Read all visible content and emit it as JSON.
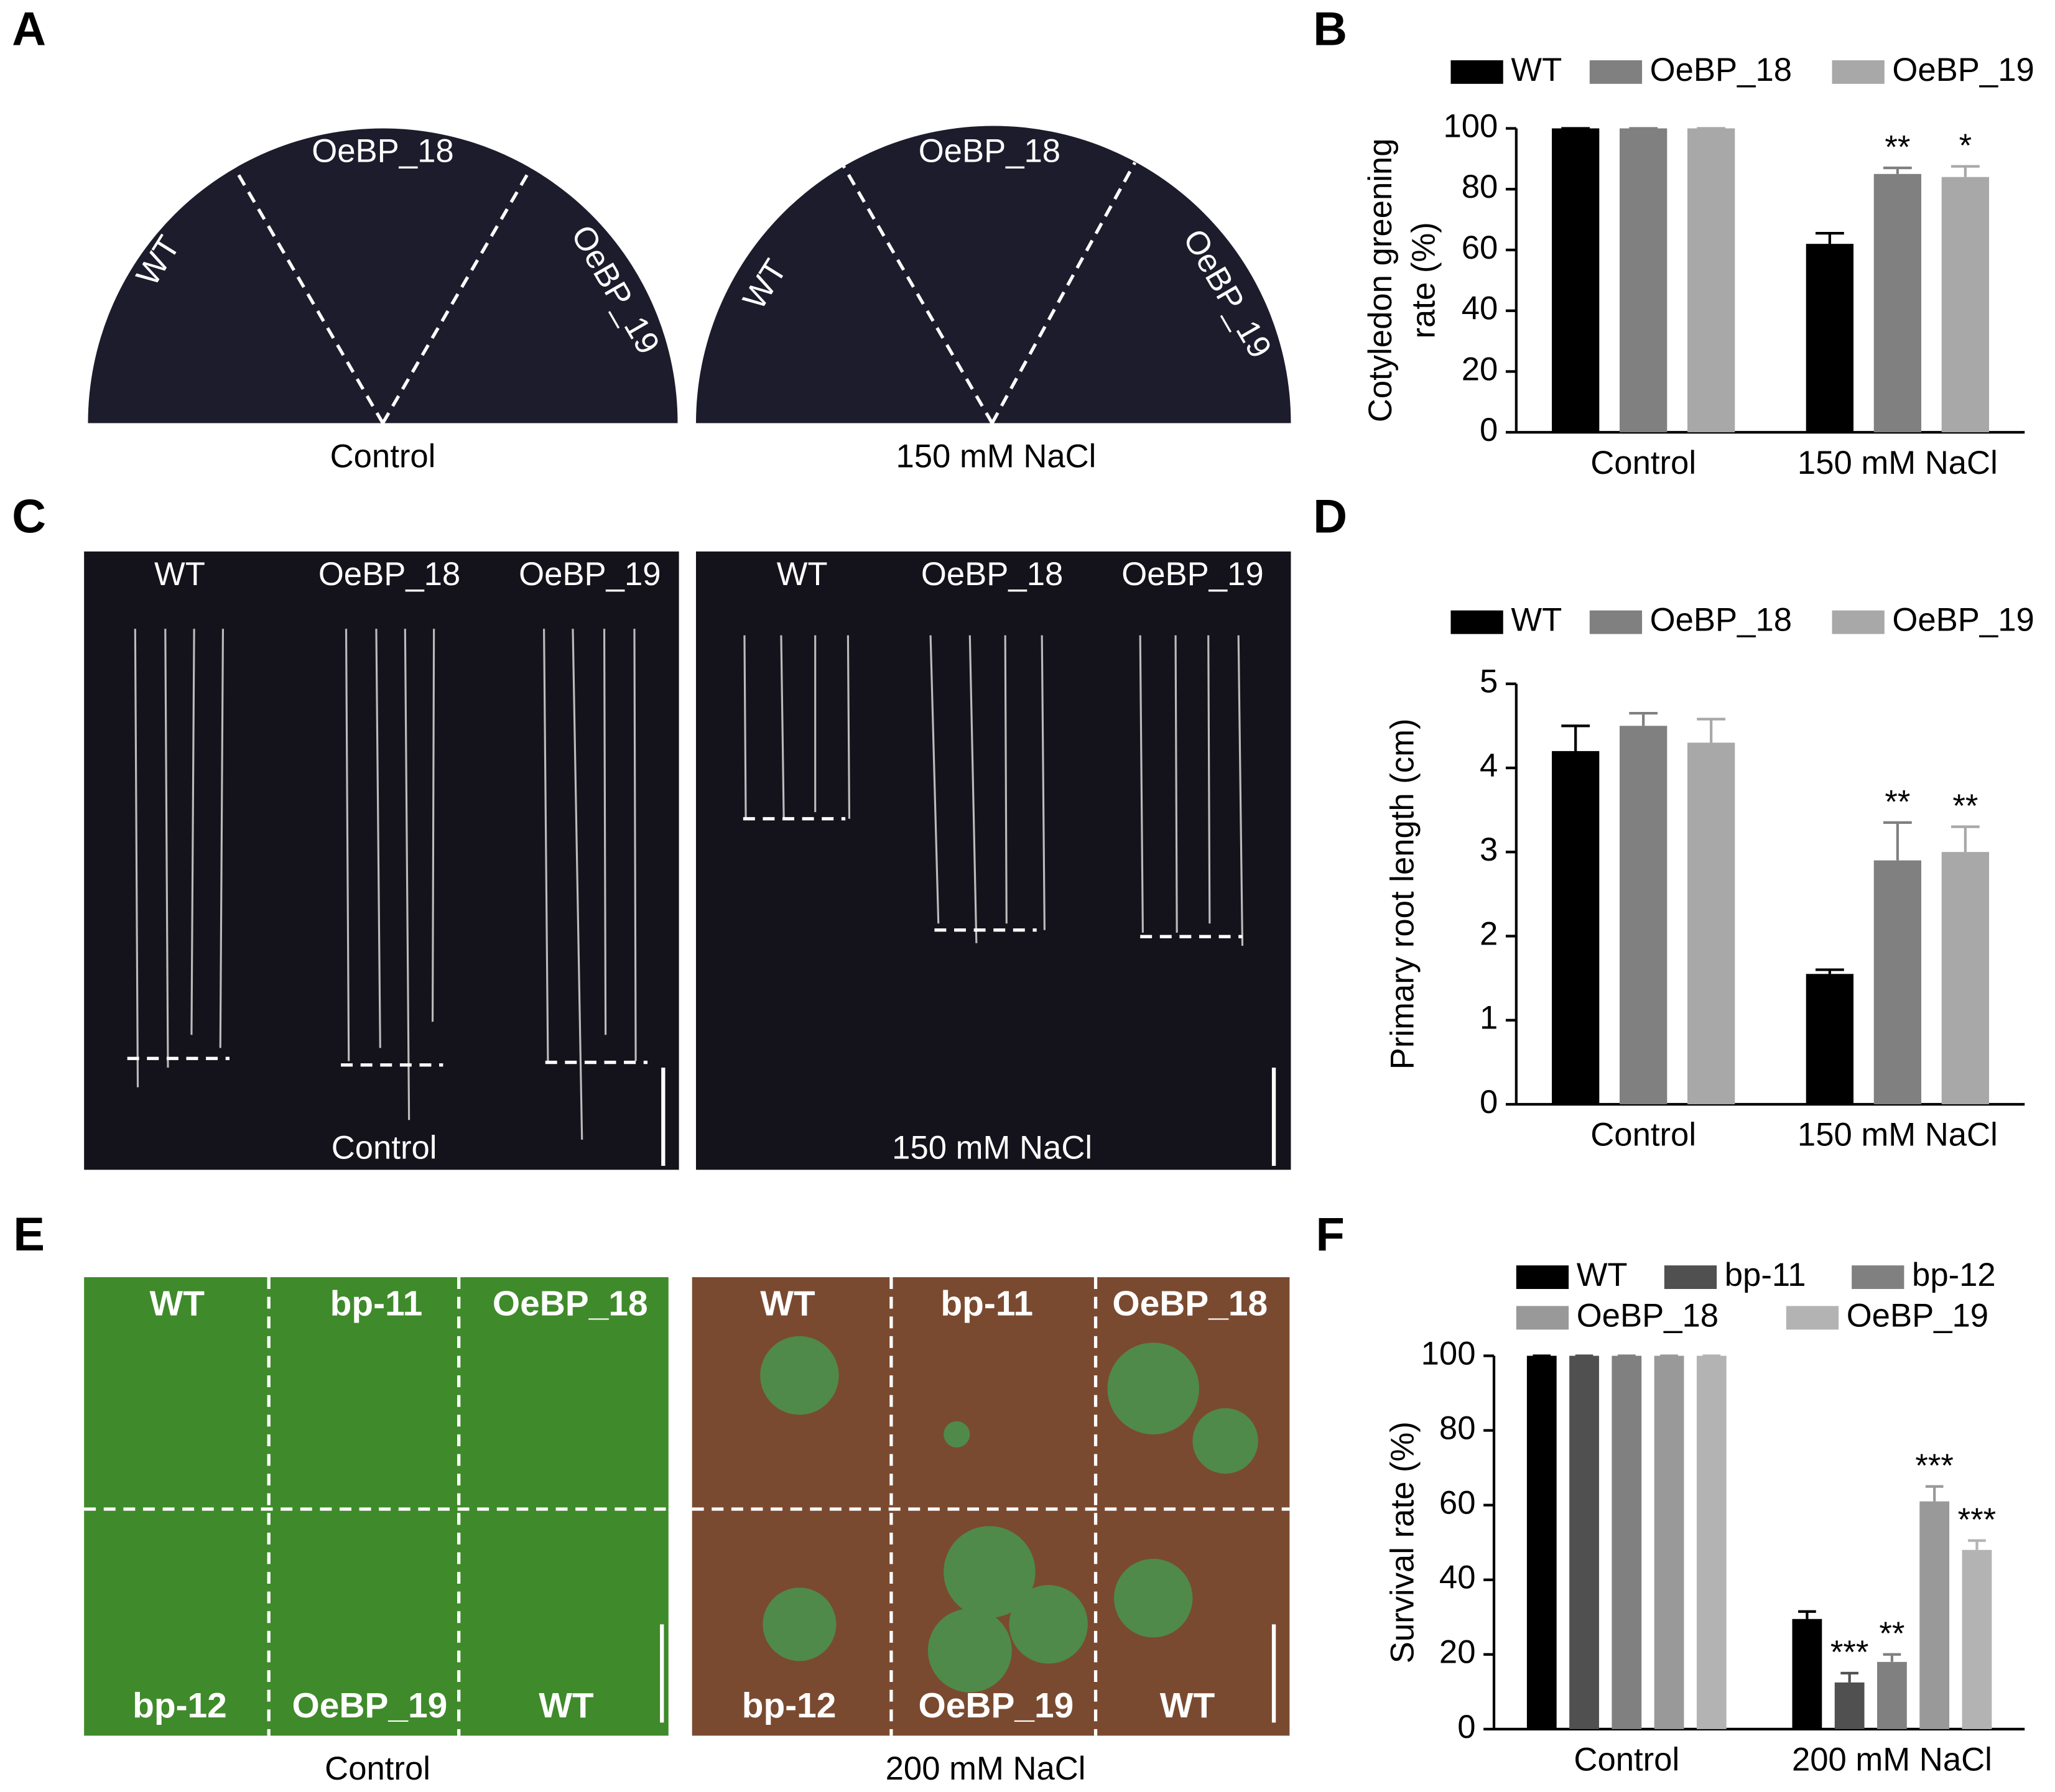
{
  "panel_labels": [
    "A",
    "B",
    "C",
    "D",
    "E",
    "F"
  ],
  "photos": [
    {
      "labels": [
        "WT",
        "OeBP_18",
        "OeBP_19"
      ],
      "caption": "Control"
    },
    {
      "labels": [
        "WT",
        "OeBP_18",
        "OeBP_19"
      ],
      "caption": "150 mM NaCl"
    },
    {
      "labels": [
        "WT",
        "OeBP_18",
        "OeBP_19"
      ],
      "caption": "Control"
    },
    {
      "labels": [
        "WT",
        "OeBP_18",
        "OeBP_19"
      ],
      "caption": "150 mM NaCl"
    },
    {
      "labels": [
        "WT",
        "bp-11",
        "OeBP_18",
        "bp-12",
        "OeBP_19",
        "WT"
      ],
      "caption": "Control"
    },
    {
      "labels": [
        "WT",
        "bp-11",
        "OeBP_18",
        "bp-12",
        "OeBP_19",
        "WT"
      ],
      "caption": "200 mM NaCl"
    }
  ],
  "chart_data": [
    {
      "type": "bar",
      "ylabel": [
        "Cotyledon greening",
        "rate (%)"
      ],
      "categories": [
        "Control",
        "150 mM NaCl"
      ],
      "ylim": [
        0,
        100
      ],
      "yticks": [
        0,
        20,
        40,
        60,
        80,
        100
      ],
      "series": [
        {
          "name": "WT",
          "color": "#000000",
          "values": [
            100,
            62
          ],
          "error": [
            0,
            3.5
          ],
          "significance": [
            null,
            null
          ]
        },
        {
          "name": "OeBP_18",
          "color": "#808080",
          "values": [
            100,
            85
          ],
          "error": [
            0,
            2
          ],
          "significance": [
            null,
            "**"
          ]
        },
        {
          "name": "OeBP_19",
          "color": "#a8a8a8",
          "values": [
            100,
            84
          ],
          "error": [
            0,
            3.5
          ],
          "significance": [
            null,
            "*"
          ]
        }
      ]
    },
    {
      "type": "bar",
      "ylabel": [
        "Primary root length (cm)"
      ],
      "categories": [
        "Control",
        "150 mM NaCl"
      ],
      "ylim": [
        0,
        5
      ],
      "yticks": [
        0,
        1,
        2,
        3,
        4,
        5
      ],
      "series": [
        {
          "name": "WT",
          "color": "#000000",
          "values": [
            4.2,
            1.55
          ],
          "error": [
            0.3,
            0.05
          ],
          "significance": [
            null,
            null
          ]
        },
        {
          "name": "OeBP_18",
          "color": "#808080",
          "values": [
            4.5,
            2.9
          ],
          "error": [
            0.15,
            0.45
          ],
          "significance": [
            null,
            "**"
          ]
        },
        {
          "name": "OeBP_19",
          "color": "#a8a8a8",
          "values": [
            4.3,
            3.0
          ],
          "error": [
            0.28,
            0.3
          ],
          "significance": [
            null,
            "**"
          ]
        }
      ]
    },
    {
      "type": "bar",
      "ylabel": [
        "Survival rate (%)"
      ],
      "categories": [
        "Control",
        "200 mM NaCl"
      ],
      "ylim": [
        0,
        100
      ],
      "yticks": [
        0,
        20,
        40,
        60,
        80,
        100
      ],
      "series": [
        {
          "name": "WT",
          "color": "#000000",
          "values": [
            100,
            29.5
          ],
          "error": [
            0,
            2
          ],
          "significance": [
            null,
            null
          ]
        },
        {
          "name": "bp-11",
          "color": "#505050",
          "values": [
            100,
            12.5
          ],
          "error": [
            0,
            2.5
          ],
          "significance": [
            null,
            "***"
          ]
        },
        {
          "name": "bp-12",
          "color": "#808080",
          "values": [
            100,
            18
          ],
          "error": [
            0,
            2
          ],
          "significance": [
            null,
            "**"
          ]
        },
        {
          "name": "OeBP_18",
          "color": "#999999",
          "values": [
            100,
            61
          ],
          "error": [
            0,
            4
          ],
          "significance": [
            null,
            "***"
          ]
        },
        {
          "name": "OeBP_19",
          "color": "#b3b3b3",
          "values": [
            100,
            48
          ],
          "error": [
            0,
            2.5
          ],
          "significance": [
            null,
            "***"
          ]
        }
      ]
    }
  ]
}
